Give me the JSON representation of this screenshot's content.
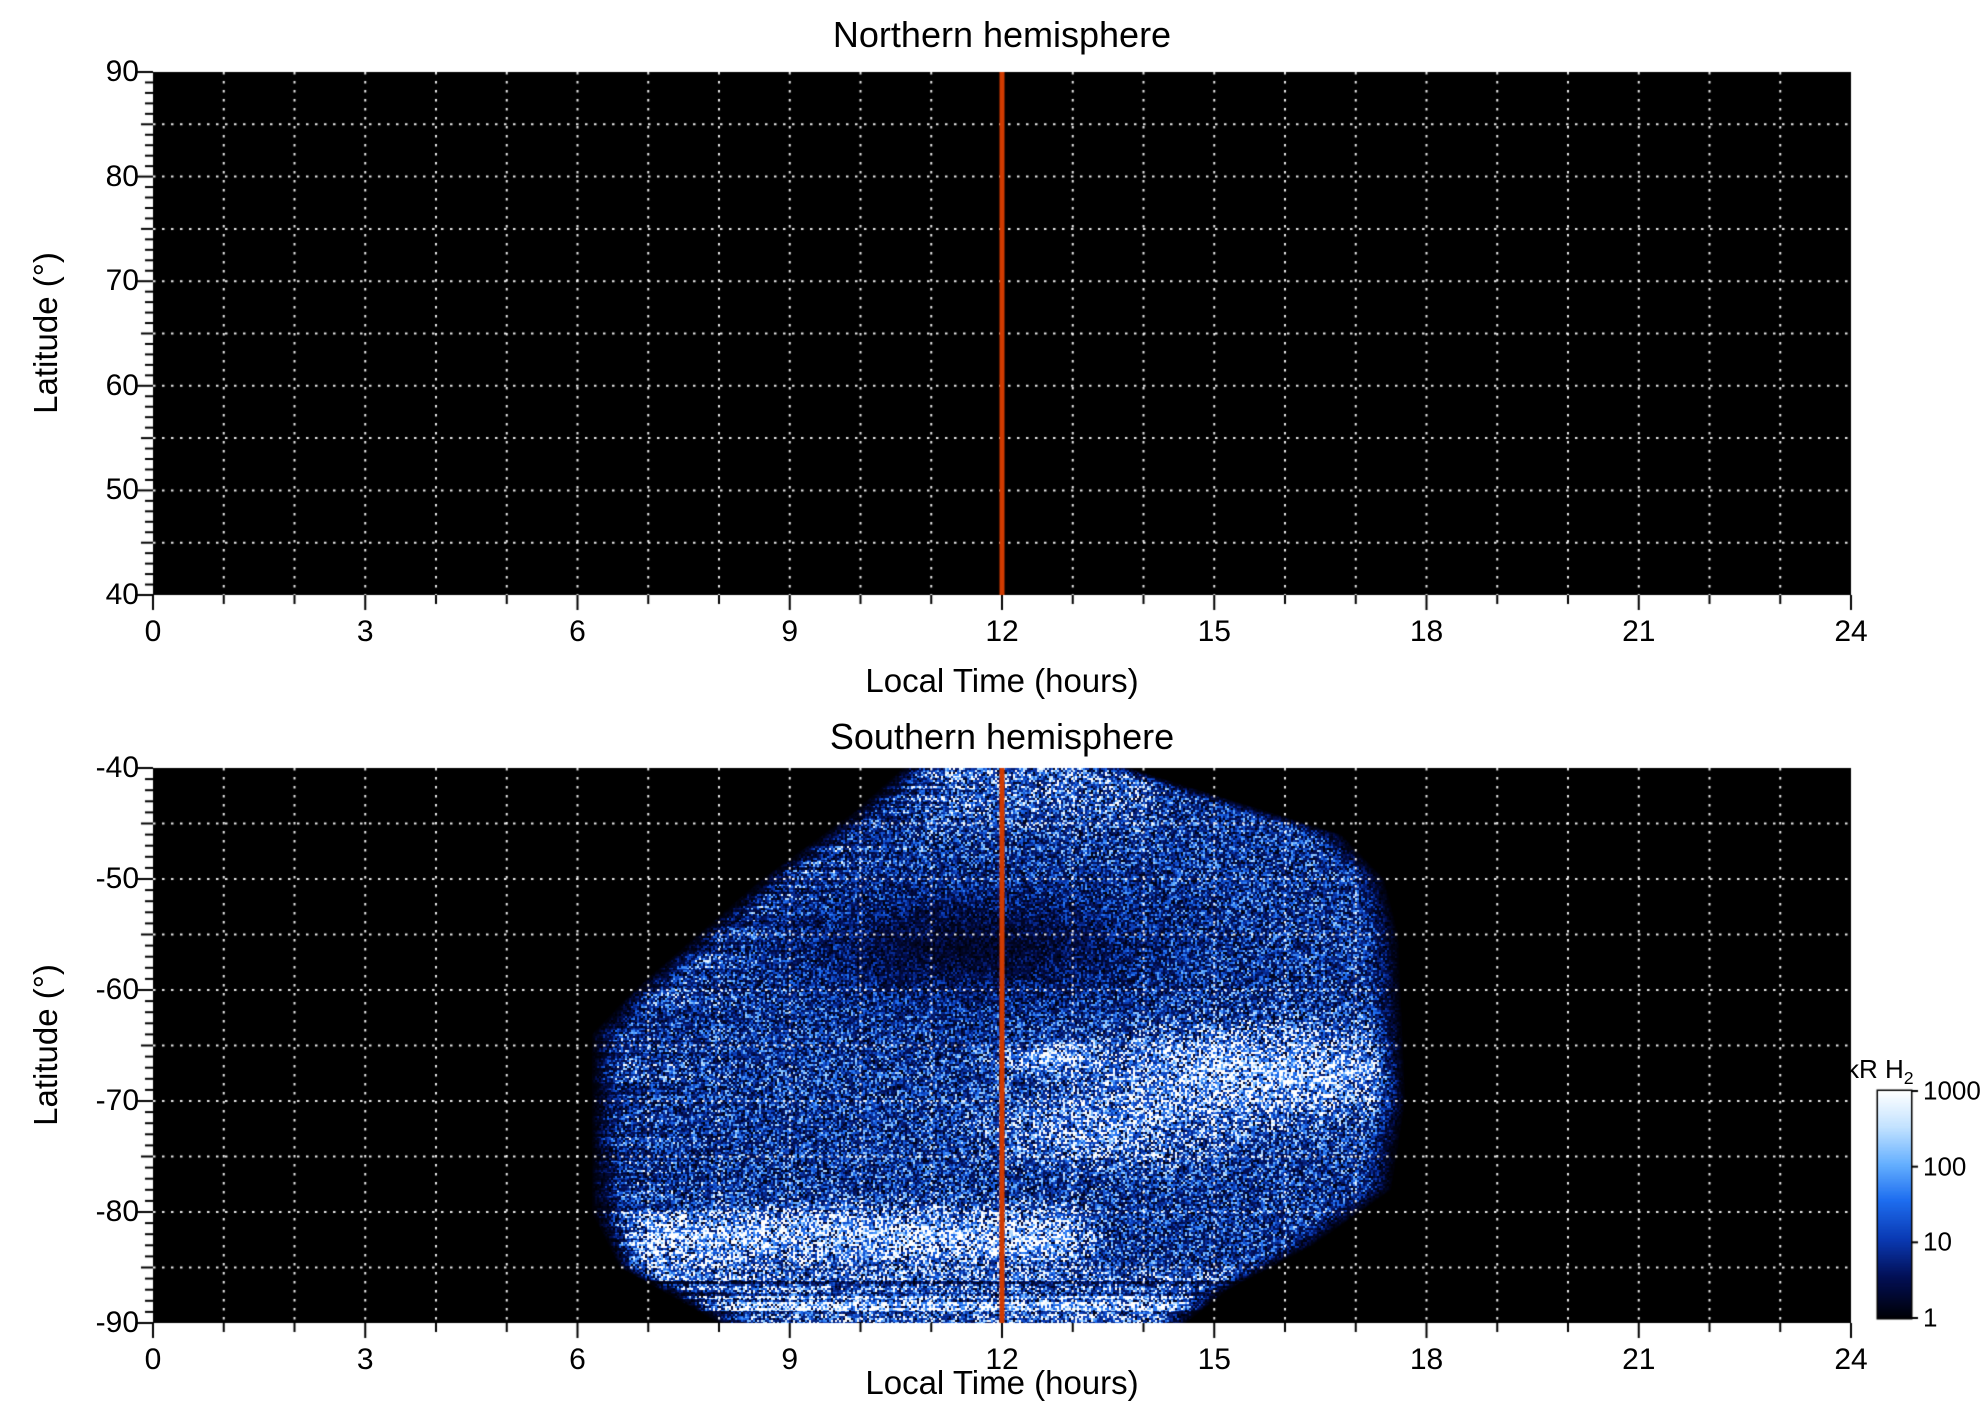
{
  "figure": {
    "background": "#ffffff",
    "noon_line": {
      "hour": 12,
      "color": "#d13b00"
    }
  },
  "chart_data": [
    {
      "type": "heatmap",
      "panel": "top",
      "title": "Northern hemisphere",
      "xlabel": "Local Time (hours)",
      "ylabel": "Latitude (°)",
      "xlim": [
        0,
        24
      ],
      "ylim": [
        40,
        90
      ],
      "xticks": [
        0,
        3,
        6,
        9,
        12,
        15,
        18,
        21,
        24
      ],
      "xtick_labels": [
        "0",
        "3",
        "6",
        "9",
        "12",
        "15",
        "18",
        "21",
        "24"
      ],
      "ytick_values": [
        90,
        80,
        70,
        60,
        50,
        40
      ],
      "ytick_labels": [
        "90",
        "80",
        "70",
        "60",
        "50",
        "40"
      ],
      "x_minor_step_hours": 1,
      "y_minor_step_deg": 1,
      "grid": {
        "x_step_hours": 1,
        "y_step_deg": 5,
        "style": "dotted",
        "color": "#ffffff"
      },
      "plot_background": "#000000",
      "noon_line_hour": 12,
      "values": "no detectable H2 emission - entire panel at or below 1 kR (black)"
    },
    {
      "type": "heatmap",
      "panel": "bottom",
      "title": "Southern hemisphere",
      "xlabel": "Local Time (hours)",
      "ylabel": "Latitude (°)",
      "xlim": [
        0,
        24
      ],
      "ylim": [
        -90,
        -40
      ],
      "xticks": [
        0,
        3,
        6,
        9,
        12,
        15,
        18,
        21,
        24
      ],
      "xtick_labels": [
        "0",
        "3",
        "6",
        "9",
        "12",
        "15",
        "18",
        "21",
        "24"
      ],
      "ytick_values": [
        -40,
        -50,
        -60,
        -70,
        -80,
        -90
      ],
      "ytick_labels": [
        "-40",
        "-50",
        "-60",
        "-70",
        "-80",
        "-90"
      ],
      "x_minor_step_hours": 1,
      "y_minor_step_deg": 1,
      "grid": {
        "x_step_hours": 1,
        "y_step_deg": 5,
        "style": "dotted",
        "color": "#ffffff"
      },
      "plot_background": "#000000",
      "noon_line_hour": 12,
      "colorbar": {
        "label_main": "kR H",
        "label_sub": "2",
        "units": "kR H2",
        "scale": "log",
        "range": [
          1,
          1000
        ],
        "tick_values": [
          1000,
          100,
          10,
          1
        ],
        "tick_labels": [
          "1000",
          "100",
          "10",
          "1"
        ],
        "gradient_stops": [
          [
            0.0,
            "#000006"
          ],
          [
            0.18,
            "#020f55"
          ],
          [
            0.35,
            "#0a3ab4"
          ],
          [
            0.52,
            "#1e6ef0"
          ],
          [
            0.68,
            "#66b0ff"
          ],
          [
            0.84,
            "#c2e2ff"
          ],
          [
            1.0,
            "#ffffff"
          ]
        ]
      },
      "emission": {
        "seed": 1234567,
        "description": "Speckled H2 auroral emission observed between ~06:00 and ~17:45 local time, latitudes -40 to -90; bright (~1000 kR) auroral oval patches near -63 to -75 on the afternoon side, a bright dawn-to-noon arc near -80 to -85, diffuse 5-100 kR emission elsewhere, dark speckled region near 09-14 h at -50 to -62, streaky filaments along the dawn edge and over the pole",
        "envelope_left_edge_lat_lt": [
          [
            -90,
            8.0
          ],
          [
            -85,
            6.6
          ],
          [
            -80,
            6.2
          ],
          [
            -64,
            6.2
          ],
          [
            -60,
            6.8
          ],
          [
            -50,
            8.6
          ],
          [
            -44,
            9.9
          ],
          [
            -40,
            10.6
          ]
        ],
        "envelope_right_edge_lat_lt": [
          [
            -90,
            14.6
          ],
          [
            -87,
            15.2
          ],
          [
            -83,
            16.4
          ],
          [
            -78,
            17.5
          ],
          [
            -70,
            17.7
          ],
          [
            -55,
            17.6
          ],
          [
            -50,
            17.4
          ],
          [
            -46,
            16.8
          ],
          [
            -40,
            13.8
          ]
        ],
        "features": [
          {
            "name": "afternoon-oval-bright-patch",
            "type": "gaussian",
            "lt": 15.6,
            "lat": -67.5,
            "sigma_lt": 1.8,
            "sigma_lat": 3.4,
            "amp": 0.9
          },
          {
            "name": "afternoon-oval-extension",
            "type": "gaussian",
            "lt": 13.5,
            "lat": -72.5,
            "sigma_lt": 1.3,
            "sigma_lat": 2.8,
            "amp": 0.55
          },
          {
            "name": "noon-bright-spot",
            "type": "gaussian",
            "lt": 12.75,
            "lat": -66.2,
            "sigma_lt": 0.6,
            "sigma_lat": 1.0,
            "amp": 0.75
          },
          {
            "name": "dawn-noon-arc",
            "type": "ridge",
            "lat": -82.3,
            "sigma_lat": 2.2,
            "lt_from": 6.3,
            "lt_to": 13.6,
            "amp": 0.8
          },
          {
            "name": "polar-streak-band",
            "type": "ridge",
            "lat": -88.6,
            "sigma_lat": 1.4,
            "lt_from": 7.6,
            "lt_to": 15.2,
            "amp": 0.55
          },
          {
            "name": "dark-speckled-region",
            "type": "gaussian",
            "lt": 11.6,
            "lat": -56.0,
            "sigma_lt": 2.4,
            "sigma_lat": 5.0,
            "amp": -0.33
          },
          {
            "name": "noon-top-diffuse-band",
            "type": "ridge",
            "lat": -41.5,
            "sigma_lat": 3.5,
            "lt_from": 10.4,
            "lt_to": 14.6,
            "amp": 0.22
          }
        ]
      }
    }
  ]
}
